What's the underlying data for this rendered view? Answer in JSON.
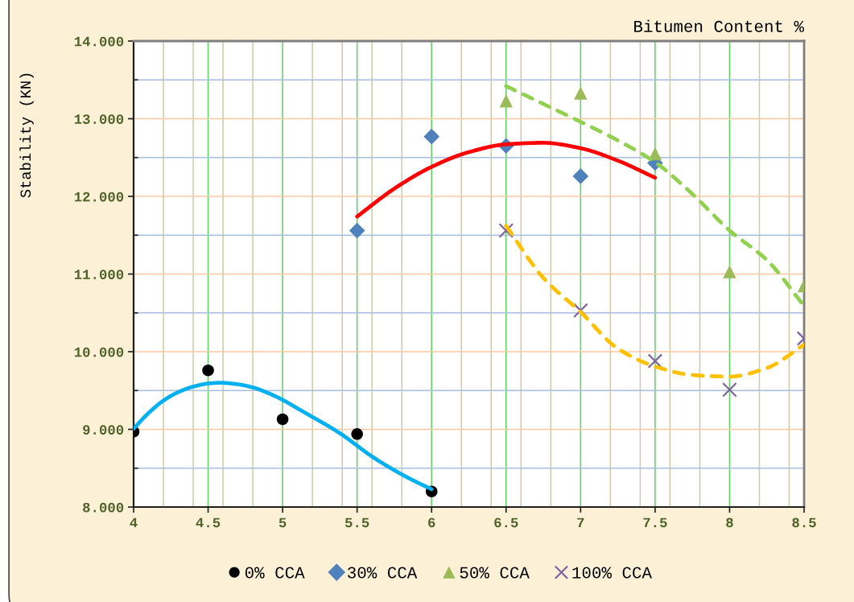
{
  "chart_data": {
    "type": "scatter",
    "xlabel": "Bitumen Content %",
    "ylabel": "Stability (KN)",
    "xlim": [
      4,
      8.5
    ],
    "ylim": [
      8,
      14
    ],
    "xticks": [
      4,
      {
        "value": 4.2,
        "label": null
      },
      {
        "value": 4.4,
        "label": null
      },
      4.5,
      {
        "value": 4.6,
        "label": null
      },
      {
        "value": 4.8,
        "label": null
      },
      5,
      {
        "value": 5.2,
        "label": null
      },
      {
        "value": 5.4,
        "label": null
      },
      5.5,
      {
        "value": 5.6,
        "label": null
      },
      {
        "value": 5.8,
        "label": null
      },
      6,
      {
        "value": 6.2,
        "label": null
      },
      {
        "value": 6.4,
        "label": null
      },
      6.5,
      {
        "value": 6.6,
        "label": null
      },
      {
        "value": 6.8,
        "label": null
      },
      7,
      {
        "value": 7.2,
        "label": null
      },
      {
        "value": 7.4,
        "label": null
      },
      7.5,
      {
        "value": 7.6,
        "label": null
      },
      {
        "value": 7.8,
        "label": null
      },
      8,
      {
        "value": 8.2,
        "label": null
      },
      {
        "value": 8.4,
        "label": null
      },
      8.5
    ],
    "yticks": [
      {
        "value": 8,
        "label": "8.000"
      },
      {
        "value": 8.5,
        "label": null
      },
      {
        "value": 9,
        "label": "9.000"
      },
      {
        "value": 9.5,
        "label": null
      },
      {
        "value": 10,
        "label": "10.000"
      },
      {
        "value": 10.5,
        "label": null
      },
      {
        "value": 11,
        "label": "11.000"
      },
      {
        "value": 11.5,
        "label": null
      },
      {
        "value": 12,
        "label": "12.000"
      },
      {
        "value": 12.5,
        "label": null
      },
      {
        "value": 13,
        "label": "13.000"
      },
      {
        "value": 13.5,
        "label": null
      },
      {
        "value": 14,
        "label": "14.000"
      }
    ],
    "grid": true,
    "legend": "bottom",
    "series": [
      {
        "name": "0% CCA",
        "marker": "circle",
        "color": "#000000",
        "x": [
          4,
          4.5,
          5,
          5.5,
          6
        ],
        "values": [
          8.97,
          9.76,
          9.13,
          8.94,
          8.2
        ]
      },
      {
        "name": "30% CCA",
        "marker": "diamond",
        "color": "#4f81bd",
        "x": [
          5.5,
          6,
          6.5,
          7,
          7.5
        ],
        "values": [
          11.56,
          12.77,
          12.65,
          12.26,
          12.43
        ]
      },
      {
        "name": "50% CCA",
        "marker": "triangle",
        "color": "#9bbb59",
        "x": [
          6.5,
          7,
          7.5,
          8,
          8.5
        ],
        "values": [
          13.23,
          13.33,
          12.55,
          11.03,
          10.85
        ]
      },
      {
        "name": "100% CCA",
        "marker": "cross",
        "color": "#8064a2",
        "x": [
          6.5,
          7,
          7.5,
          8,
          8.5
        ],
        "values": [
          11.56,
          10.53,
          9.88,
          9.51,
          10.17
        ]
      },
      {
        "type": "line",
        "line_style": "solid",
        "color": "#00b0f0",
        "x": [
          4,
          4.1,
          4.2,
          4.3,
          4.4,
          4.5,
          4.58,
          4.7,
          4.8,
          4.9,
          5,
          5.1,
          5.2,
          5.3,
          5.4,
          5.5,
          5.6,
          5.7,
          5.8,
          5.9,
          6
        ],
        "values": [
          9.01,
          9.21,
          9.37,
          9.48,
          9.55,
          9.59,
          9.6,
          9.58,
          9.54,
          9.47,
          9.38,
          9.27,
          9.16,
          9.05,
          8.93,
          8.79,
          8.65,
          8.53,
          8.42,
          8.32,
          8.23
        ]
      },
      {
        "type": "line",
        "line_style": "solid",
        "color": "#ff0000",
        "x": [
          5.5,
          5.75,
          6,
          6.25,
          6.5,
          6.75,
          7,
          7.25,
          7.5
        ],
        "values": [
          11.74,
          12.1,
          12.38,
          12.57,
          12.67,
          12.69,
          12.62,
          12.46,
          12.24
        ]
      },
      {
        "type": "line",
        "line_style": "dashed",
        "color": "#92d050",
        "x": [
          6.5,
          6.75,
          7,
          7.25,
          7.5,
          7.75,
          8,
          8.25,
          8.5
        ],
        "values": [
          13.42,
          13.19,
          12.96,
          12.72,
          12.44,
          12.03,
          11.56,
          11.18,
          10.59
        ]
      },
      {
        "type": "line",
        "line_style": "dashed",
        "color": "#ffc000",
        "x": [
          6.5,
          6.75,
          7,
          7.25,
          7.5,
          7.75,
          8,
          8.25,
          8.5
        ],
        "values": [
          11.62,
          10.95,
          10.51,
          10.04,
          9.81,
          9.7,
          9.68,
          9.79,
          10.09
        ]
      }
    ]
  }
}
